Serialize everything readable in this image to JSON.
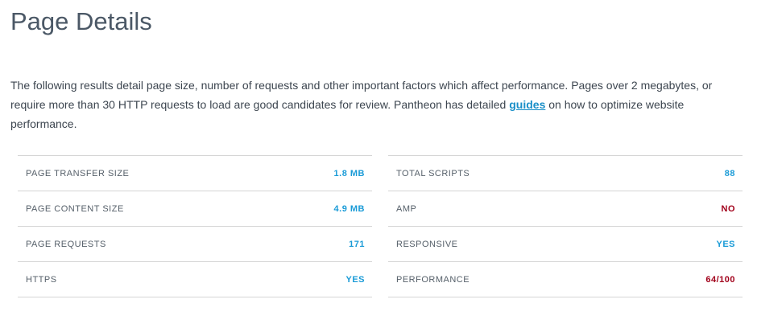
{
  "header": {
    "title": "Page Details"
  },
  "intro": {
    "before_link": "The following results detail page size, number of requests and other important factors which affect performance. Pages over 2 megabytes, or require more than 30 HTTP requests to load are good candidates for review. Pantheon has detailed ",
    "link": "guides",
    "after_link": " on how to optimize website performance."
  },
  "table_left": {
    "rows": [
      [
        "PAGE TRANSFER SIZE",
        "1.8 MB"
      ],
      [
        "PAGE CONTENT SIZE",
        "4.9 MB"
      ],
      [
        "PAGE REQUESTS",
        "171"
      ],
      [
        "HTTPS",
        "YES"
      ]
    ]
  },
  "table_right": {
    "rows": [
      [
        "TOTAL SCRIPTS",
        "88"
      ],
      [
        "AMP",
        "NO"
      ],
      [
        "RESPONSIVE",
        "YES"
      ],
      [
        "PERFORMANCE",
        "64/100"
      ]
    ]
  }
}
